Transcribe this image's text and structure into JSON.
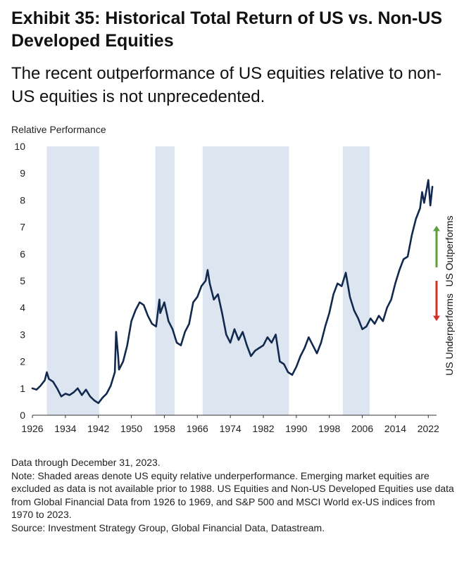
{
  "header": {
    "title": "Exhibit 35: Historical Total Return of US vs. Non-US Developed Equities",
    "subtitle": "The recent outperformance of US equities relative to non-US equities is not unprecedented."
  },
  "chart_data": {
    "type": "line",
    "title": "Exhibit 35: Historical Total Return of US vs. Non-US Developed Equities",
    "ylabel": "Relative Performance",
    "xlabel": "",
    "xlim": [
      1926,
      2024
    ],
    "ylim": [
      0,
      10
    ],
    "yticks": [
      0,
      1,
      2,
      3,
      4,
      5,
      6,
      7,
      8,
      9,
      10
    ],
    "xticks": [
      "1926",
      "1934",
      "1942",
      "1950",
      "1958",
      "1966",
      "1974",
      "1982",
      "1990",
      "1998",
      "2006",
      "2014",
      "2022"
    ],
    "shaded_periods": [
      [
        1929.5,
        1942.2
      ],
      [
        1955.8,
        1960.5
      ],
      [
        1967.3,
        1988.2
      ],
      [
        2001.3,
        2007.8
      ]
    ],
    "series": [
      {
        "color": "#12294f",
        "x": [
          1926,
          1927,
          1928,
          1929,
          1929.5,
          1930,
          1931,
          1932,
          1933,
          1934,
          1935,
          1936,
          1937,
          1938,
          1939,
          1940,
          1941,
          1942,
          1943,
          1944,
          1945,
          1946,
          1946.3,
          1946.8,
          1947,
          1948,
          1949,
          1950,
          1951,
          1952,
          1953,
          1954,
          1955,
          1956,
          1956.8,
          1957,
          1958,
          1959,
          1960,
          1961,
          1962,
          1963,
          1964,
          1965,
          1966,
          1967,
          1968,
          1968.5,
          1969,
          1970,
          1971,
          1972,
          1973,
          1974,
          1975,
          1976,
          1977,
          1978,
          1979,
          1980,
          1981,
          1982,
          1983,
          1984,
          1985,
          1986,
          1987,
          1988,
          1989,
          1990,
          1991,
          1992,
          1993,
          1994,
          1995,
          1996,
          1997,
          1998,
          1999,
          2000,
          2001,
          2002,
          2003,
          2004,
          2005,
          2006,
          2007,
          2008,
          2009,
          2010,
          2011,
          2012,
          2013,
          2014,
          2015,
          2016,
          2017,
          2018,
          2019,
          2020,
          2020.5,
          2021,
          2021.6,
          2022,
          2022.5,
          2023
        ],
        "values": [
          1.0,
          0.95,
          1.1,
          1.3,
          1.6,
          1.35,
          1.25,
          1.0,
          0.7,
          0.8,
          0.75,
          0.85,
          1.0,
          0.75,
          0.95,
          0.7,
          0.55,
          0.45,
          0.65,
          0.8,
          1.1,
          1.6,
          3.1,
          2.2,
          1.7,
          2.0,
          2.6,
          3.5,
          3.9,
          4.2,
          4.1,
          3.7,
          3.4,
          3.3,
          4.3,
          3.8,
          4.2,
          3.5,
          3.2,
          2.7,
          2.6,
          3.1,
          3.4,
          4.2,
          4.4,
          4.8,
          5.0,
          5.4,
          4.9,
          4.3,
          4.5,
          3.8,
          3.0,
          2.7,
          3.2,
          2.8,
          3.1,
          2.6,
          2.2,
          2.4,
          2.5,
          2.6,
          2.9,
          2.7,
          3.0,
          2.0,
          1.9,
          1.6,
          1.5,
          1.8,
          2.2,
          2.5,
          2.9,
          2.6,
          2.3,
          2.7,
          3.3,
          3.8,
          4.5,
          4.9,
          4.8,
          5.3,
          4.4,
          3.9,
          3.6,
          3.2,
          3.3,
          3.6,
          3.4,
          3.7,
          3.5,
          4.0,
          4.3,
          4.9,
          5.4,
          5.8,
          5.9,
          6.7,
          7.3,
          7.7,
          8.3,
          7.9,
          8.4,
          8.75,
          7.8,
          8.5
        ]
      }
    ],
    "annotations": {
      "up": "US Outperforms",
      "down": "US Underperforms"
    },
    "colors": {
      "line": "#12294f",
      "shade": "#dde5f1",
      "up_arrow": "#5e9f3a",
      "down_arrow": "#d4302b"
    }
  },
  "notes": {
    "line1": "Data through December 31, 2023.",
    "line2": "Note: Shaded areas denote US equity relative underperformance. Emerging market equities are excluded as data is not available prior to 1988. US Equities and Non-US Developed Equities use data from Global Financial Data from 1926 to 1969, and S&P 500 and MSCI World ex-US indices from 1970 to 2023.",
    "line3": "Source: Investment Strategy Group, Global Financial Data, Datastream."
  }
}
